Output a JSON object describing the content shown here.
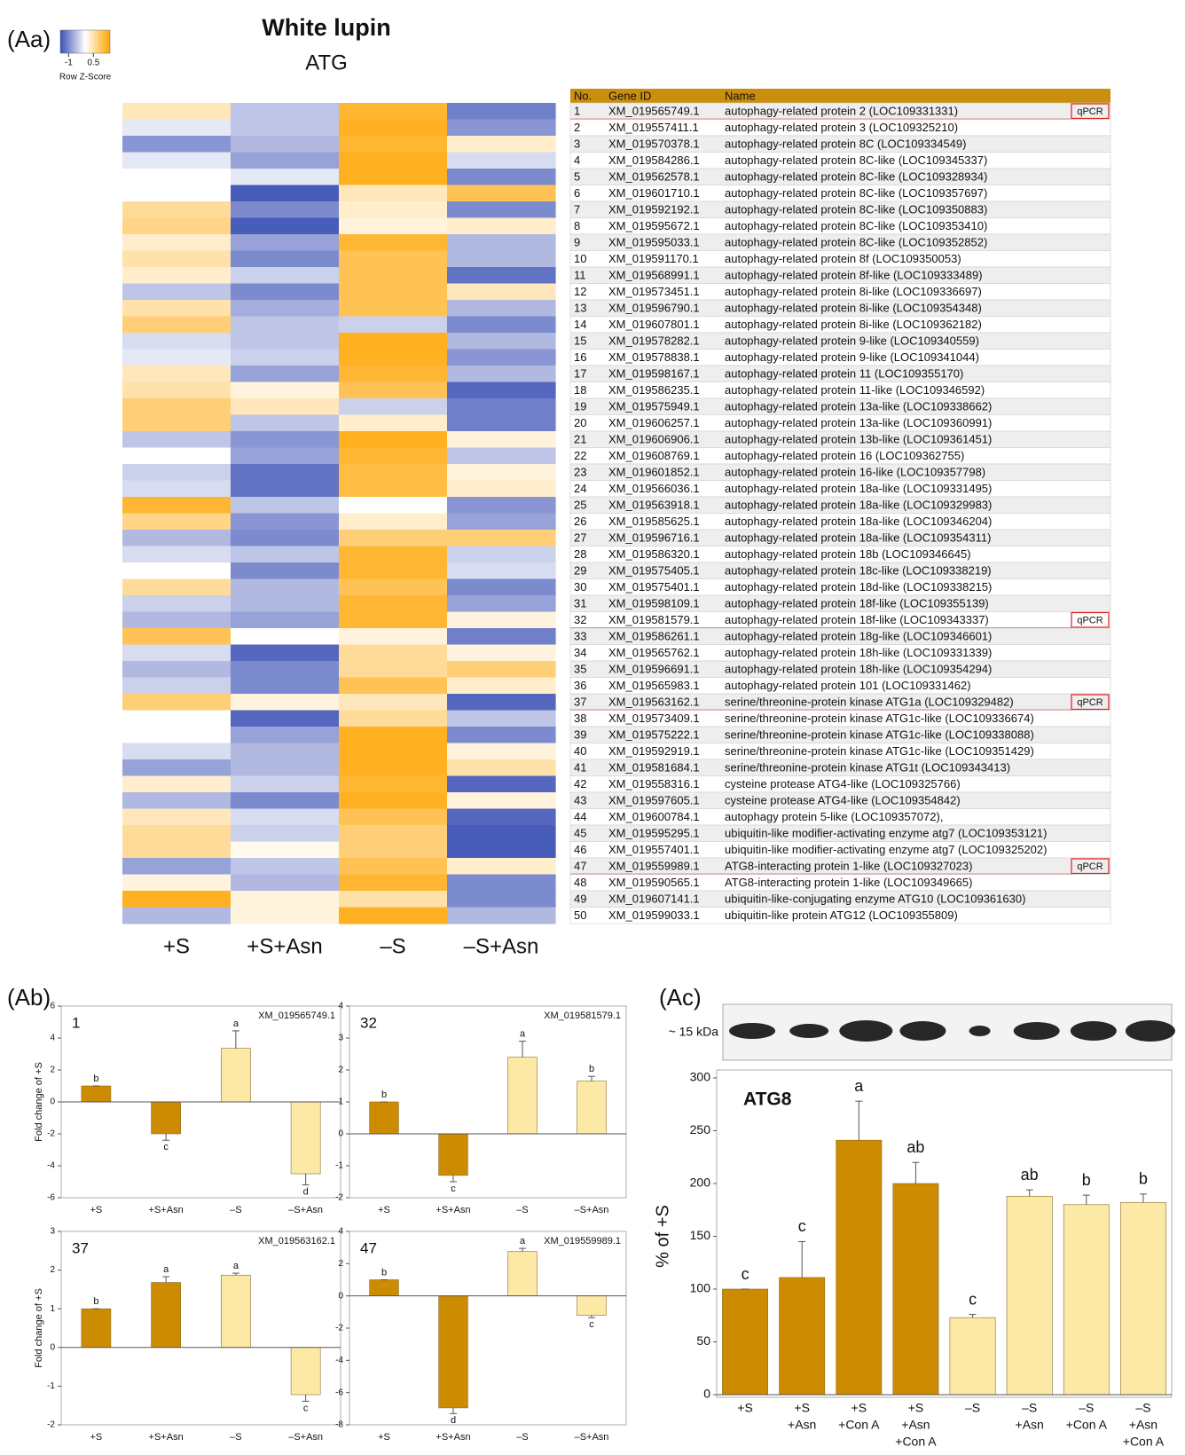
{
  "panel_labels": [
    "(Aa)",
    "(Ab)",
    "(Ac)"
  ],
  "table": {
    "header": [
      "No.",
      "Gene ID",
      "Name"
    ],
    "rows": [
      [
        1,
        "XM_019565749.1",
        "autophagy-related protein 2 (LOC109331331)",
        "qPCR"
      ],
      [
        2,
        "XM_019557411.1",
        "autophagy-related protein 3 (LOC109325210)"
      ],
      [
        3,
        "XM_019570378.1",
        "autophagy-related protein 8C (LOC109334549)"
      ],
      [
        4,
        "XM_019584286.1",
        "autophagy-related protein 8C-like (LOC109345337)"
      ],
      [
        5,
        "XM_019562578.1",
        "autophagy-related protein 8C-like (LOC109328934)"
      ],
      [
        6,
        "XM_019601710.1",
        "autophagy-related protein 8C-like (LOC109357697)"
      ],
      [
        7,
        "XM_019592192.1",
        "autophagy-related protein 8C-like (LOC109350883)"
      ],
      [
        8,
        "XM_019595672.1",
        "autophagy-related protein 8C-like (LOC109353410)"
      ],
      [
        9,
        "XM_019595033.1",
        "autophagy-related protein 8C-like (LOC109352852)"
      ],
      [
        10,
        "XM_019591170.1",
        "autophagy-related protein 8f (LOC109350053)"
      ],
      [
        11,
        "XM_019568991.1",
        "autophagy-related protein 8f-like (LOC109333489)"
      ],
      [
        12,
        "XM_019573451.1",
        "autophagy-related protein 8i-like (LOC109336697)"
      ],
      [
        13,
        "XM_019596790.1",
        "autophagy-related protein 8i-like (LOC109354348)"
      ],
      [
        14,
        "XM_019607801.1",
        "autophagy-related protein 8i-like (LOC109362182)"
      ],
      [
        15,
        "XM_019578282.1",
        "autophagy-related protein 9-like (LOC109340559)"
      ],
      [
        16,
        "XM_019578838.1",
        "autophagy-related protein 9-like (LOC109341044)"
      ],
      [
        17,
        "XM_019598167.1",
        "autophagy-related protein 11 (LOC109355170)"
      ],
      [
        18,
        "XM_019586235.1",
        "autophagy-related protein 11-like (LOC109346592)"
      ],
      [
        19,
        "XM_019575949.1",
        "autophagy-related protein 13a-like (LOC109338662)"
      ],
      [
        20,
        "XM_019606257.1",
        "autophagy-related protein 13a-like (LOC109360991)"
      ],
      [
        21,
        "XM_019606906.1",
        "autophagy-related protein 13b-like (LOC109361451)"
      ],
      [
        22,
        "XM_019608769.1",
        "autophagy-related protein 16 (LOC109362755)"
      ],
      [
        23,
        "XM_019601852.1",
        "autophagy-related protein 16-like (LOC109357798)"
      ],
      [
        24,
        "XM_019566036.1",
        "autophagy-related protein 18a-like (LOC109331495)"
      ],
      [
        25,
        "XM_019563918.1",
        "autophagy-related protein 18a-like (LOC109329983)"
      ],
      [
        26,
        "XM_019585625.1",
        "autophagy-related protein 18a-like (LOC109346204)"
      ],
      [
        27,
        "XM_019596716.1",
        "autophagy-related protein 18a-like (LOC109354311)"
      ],
      [
        28,
        "XM_019586320.1",
        "autophagy-related protein 18b (LOC109346645)"
      ],
      [
        29,
        "XM_019575405.1",
        "autophagy-related protein 18c-like (LOC109338219)"
      ],
      [
        30,
        "XM_019575401.1",
        "autophagy-related protein 18d-like (LOC109338215)"
      ],
      [
        31,
        "XM_019598109.1",
        "autophagy-related protein 18f-like (LOC109355139)"
      ],
      [
        32,
        "XM_019581579.1",
        "autophagy-related protein 18f-like (LOC109343337)",
        "qPCR"
      ],
      [
        33,
        "XM_019586261.1",
        "autophagy-related protein 18g-like (LOC109346601)"
      ],
      [
        34,
        "XM_019565762.1",
        "autophagy-related protein 18h-like (LOC109331339)"
      ],
      [
        35,
        "XM_019596691.1",
        "autophagy-related protein 18h-like (LOC109354294)"
      ],
      [
        36,
        "XM_019565983.1",
        "autophagy-related protein 101 (LOC109331462)"
      ],
      [
        37,
        "XM_019563162.1",
        "serine/threonine-protein kinase ATG1a (LOC109329482)",
        "qPCR"
      ],
      [
        38,
        "XM_019573409.1",
        "serine/threonine-protein kinase ATG1c-like (LOC109336674)"
      ],
      [
        39,
        "XM_019575222.1",
        "serine/threonine-protein kinase ATG1c-like (LOC109338088)"
      ],
      [
        40,
        "XM_019592919.1",
        "serine/threonine-protein kinase ATG1c-like (LOC109351429)"
      ],
      [
        41,
        "XM_019581684.1",
        "serine/threonine-protein kinase ATG1t (LOC109343413)"
      ],
      [
        42,
        "XM_019558316.1",
        "cysteine protease ATG4-like (LOC109325766)"
      ],
      [
        43,
        "XM_019597605.1",
        "cysteine protease ATG4-like (LOC109354842)"
      ],
      [
        44,
        "XM_019600784.1",
        "autophagy protein 5-like (LOC109357072),"
      ],
      [
        45,
        "XM_019595295.1",
        "ubiquitin-like modifier-activating enzyme atg7 (LOC109353121)"
      ],
      [
        46,
        "XM_019557401.1",
        "ubiquitin-like modifier-activating enzyme atg7 (LOC109325202)"
      ],
      [
        47,
        "XM_019559989.1",
        "ATG8-interacting protein 1-like (LOC109327023)",
        "qPCR"
      ],
      [
        48,
        "XM_019590565.1",
        "ATG8-interacting protein 1-like (LOC109349665)"
      ],
      [
        49,
        "XM_019607141.1",
        "ubiquitin-like-conjugating enzyme ATG10 (LOC109361630)"
      ],
      [
        50,
        "XM_019599033.1",
        "ubiquitin-like protein ATG12 (LOC109355809)"
      ]
    ]
  },
  "chart_data": [
    {
      "type": "heatmap",
      "title": "White lupin",
      "subtitle": "ATG",
      "categories": [
        "+S",
        "+S+Asn",
        "–S",
        "–S+Asn"
      ],
      "colors": [
        "#3b50b5",
        "#ffffff",
        "#ffa500"
      ],
      "zlim": [
        -1.5,
        1.5
      ],
      "zticks": [
        -1,
        0.5
      ],
      "zlabel": "Row Z-Score",
      "values": [
        [
          0.4,
          -0.5,
          1.2,
          -1.1
        ],
        [
          -0.2,
          -0.5,
          1.3,
          -0.9
        ],
        [
          -0.9,
          -0.6,
          1.2,
          0.3
        ],
        [
          -0.2,
          -0.8,
          1.3,
          -0.3
        ],
        [
          0,
          -0.2,
          1.3,
          -1.0
        ],
        [
          0,
          -1.4,
          0.4,
          1.0
        ],
        [
          0.6,
          -1.0,
          0.3,
          -1.0
        ],
        [
          0.7,
          -1.4,
          0.2,
          0.3
        ],
        [
          0.3,
          -0.8,
          1.2,
          -0.6
        ],
        [
          0.5,
          -1.0,
          1.0,
          -0.6
        ],
        [
          0.3,
          -0.4,
          1.0,
          -1.2
        ],
        [
          -0.5,
          -1.0,
          1.0,
          0.4
        ],
        [
          0.5,
          -0.7,
          1.0,
          -0.6
        ],
        [
          0.8,
          -0.5,
          -0.4,
          -1.0
        ],
        [
          -0.3,
          -0.5,
          1.3,
          -0.6
        ],
        [
          -0.2,
          -0.4,
          1.3,
          -0.9
        ],
        [
          0.4,
          -0.8,
          1.2,
          -0.6
        ],
        [
          0.5,
          0.2,
          1.0,
          -1.3
        ],
        [
          0.8,
          0.4,
          -0.4,
          -1.1
        ],
        [
          0.8,
          -0.5,
          0.3,
          -1.1
        ],
        [
          -0.5,
          -0.9,
          1.3,
          0.2
        ],
        [
          0,
          -0.8,
          1.2,
          -0.5
        ],
        [
          -0.4,
          -1.2,
          1.1,
          0.2
        ],
        [
          -0.3,
          -1.2,
          1.1,
          0.3
        ],
        [
          1.2,
          -0.5,
          0,
          -0.9
        ],
        [
          0.7,
          -0.9,
          0.3,
          -0.8
        ],
        [
          -0.6,
          -1.0,
          0.8,
          0.8
        ],
        [
          -0.3,
          -0.5,
          1.2,
          -0.4
        ],
        [
          0,
          -1.0,
          1.2,
          -0.3
        ],
        [
          0.6,
          -0.6,
          1.0,
          -1.0
        ],
        [
          -0.4,
          -0.6,
          1.2,
          -0.8
        ],
        [
          -0.6,
          -0.8,
          1.2,
          0.2
        ],
        [
          1.0,
          0,
          0.2,
          -1.1
        ],
        [
          -0.3,
          -1.3,
          0.6,
          0.2
        ],
        [
          -0.6,
          -1.0,
          0.6,
          0.8
        ],
        [
          -0.4,
          -1.0,
          1.0,
          0.3
        ],
        [
          0.8,
          0.2,
          0.4,
          -1.3
        ],
        [
          0,
          -1.3,
          0.6,
          -0.5
        ],
        [
          0,
          -0.8,
          1.3,
          -1.0
        ],
        [
          -0.3,
          -0.6,
          1.3,
          0.2
        ],
        [
          -0.8,
          -0.6,
          1.3,
          0.5
        ],
        [
          0.3,
          -0.4,
          1.2,
          -1.3
        ],
        [
          -0.6,
          -1.0,
          1.3,
          0.2
        ],
        [
          0.4,
          -0.3,
          1.0,
          -1.3
        ],
        [
          0.6,
          -0.4,
          0.8,
          -1.4
        ],
        [
          0.6,
          0.1,
          0.8,
          -1.4
        ],
        [
          -0.8,
          -0.5,
          1.0,
          0.3
        ],
        [
          0.2,
          -0.6,
          1.2,
          -1.0
        ],
        [
          1.3,
          0.2,
          0.5,
          -1.0
        ],
        [
          -0.6,
          0.2,
          1.3,
          -0.6
        ]
      ]
    },
    {
      "type": "bar",
      "label": "1",
      "gene_id": "XM_019565749.1",
      "ylabel": "Fold  change of +S",
      "categories": [
        "+S",
        "+S+Asn",
        "–S",
        "–S+Asn"
      ],
      "colors": [
        "#cc8b00",
        "#cc8b00",
        "#fde9a6",
        "#fde9a6"
      ],
      "values": [
        1,
        -2,
        3.35,
        -4.5
      ],
      "errors": [
        0,
        0.4,
        1.1,
        0.7
      ],
      "annotations": [
        "b",
        "c",
        "a",
        "d"
      ],
      "ylim": [
        -6,
        6
      ],
      "yticks": [
        -6,
        -4,
        -2,
        0,
        2,
        4,
        6
      ]
    },
    {
      "type": "bar",
      "label": "32",
      "gene_id": "XM_019581579.1",
      "categories": [
        "+S",
        "+S+Asn",
        "–S",
        "–S+Asn"
      ],
      "colors": [
        "#cc8b00",
        "#cc8b00",
        "#fde9a6",
        "#fde9a6"
      ],
      "values": [
        1,
        -1.3,
        2.4,
        1.65
      ],
      "errors": [
        0,
        0.2,
        0.5,
        0.15
      ],
      "annotations": [
        "b",
        "c",
        "a",
        "b"
      ],
      "ylim": [
        -2,
        4
      ],
      "yticks": [
        -2,
        -1,
        0,
        1,
        2,
        3,
        4
      ]
    },
    {
      "type": "bar",
      "label": "37",
      "gene_id": "XM_019563162.1",
      "ylabel": "Fold  change of +S",
      "categories": [
        "+S",
        "+S+Asn",
        "–S",
        "–S+Asn"
      ],
      "colors": [
        "#cc8b00",
        "#cc8b00",
        "#fde9a6",
        "#fde9a6"
      ],
      "values": [
        1,
        1.68,
        1.87,
        -1.22
      ],
      "errors": [
        0,
        0.15,
        0.05,
        0.17
      ],
      "annotations": [
        "b",
        "a",
        "a",
        "c"
      ],
      "ylim": [
        -2,
        3
      ],
      "yticks": [
        -2,
        -1,
        0,
        1,
        2,
        3
      ]
    },
    {
      "type": "bar",
      "label": "47",
      "gene_id": "XM_019559989.1",
      "categories": [
        "+S",
        "+S+Asn",
        "–S",
        "–S+Asn"
      ],
      "colors": [
        "#cc8b00",
        "#cc8b00",
        "#fde9a6",
        "#fde9a6"
      ],
      "values": [
        1,
        -6.95,
        2.75,
        -1.2
      ],
      "errors": [
        0,
        0.35,
        0.2,
        0.15
      ],
      "annotations": [
        "b",
        "d",
        "a",
        "c"
      ],
      "ylim": [
        -8,
        4
      ],
      "yticks": [
        -8,
        -6,
        -4,
        -2,
        0,
        2,
        4
      ]
    },
    {
      "type": "bar",
      "title": "ATG8",
      "ylabel": "% of +S",
      "blot_label": "~ 15 kDa",
      "categories": [
        [
          "+S"
        ],
        [
          "+S",
          "+Asn"
        ],
        [
          "+S",
          "+Con A"
        ],
        [
          "+S",
          "+Asn",
          "+Con A"
        ],
        [
          "–S"
        ],
        [
          "–S",
          "+Asn"
        ],
        [
          "–S",
          "+Con A"
        ],
        [
          "–S",
          "+Asn",
          "+Con A"
        ]
      ],
      "colors": [
        "#cc8b00",
        "#cc8b00",
        "#cc8b00",
        "#cc8b00",
        "#fde9a6",
        "#fde9a6",
        "#fde9a6",
        "#fde9a6"
      ],
      "values": [
        100,
        111,
        241,
        200,
        73,
        188,
        180,
        182
      ],
      "errors": [
        0,
        34,
        37,
        20,
        3,
        6,
        9,
        8
      ],
      "annotations": [
        "c",
        "c",
        "a",
        "ab",
        "c",
        "ab",
        "b",
        "b"
      ],
      "ylim": [
        0,
        300
      ],
      "yticks": [
        0,
        50,
        100,
        150,
        200,
        250,
        300
      ]
    }
  ]
}
